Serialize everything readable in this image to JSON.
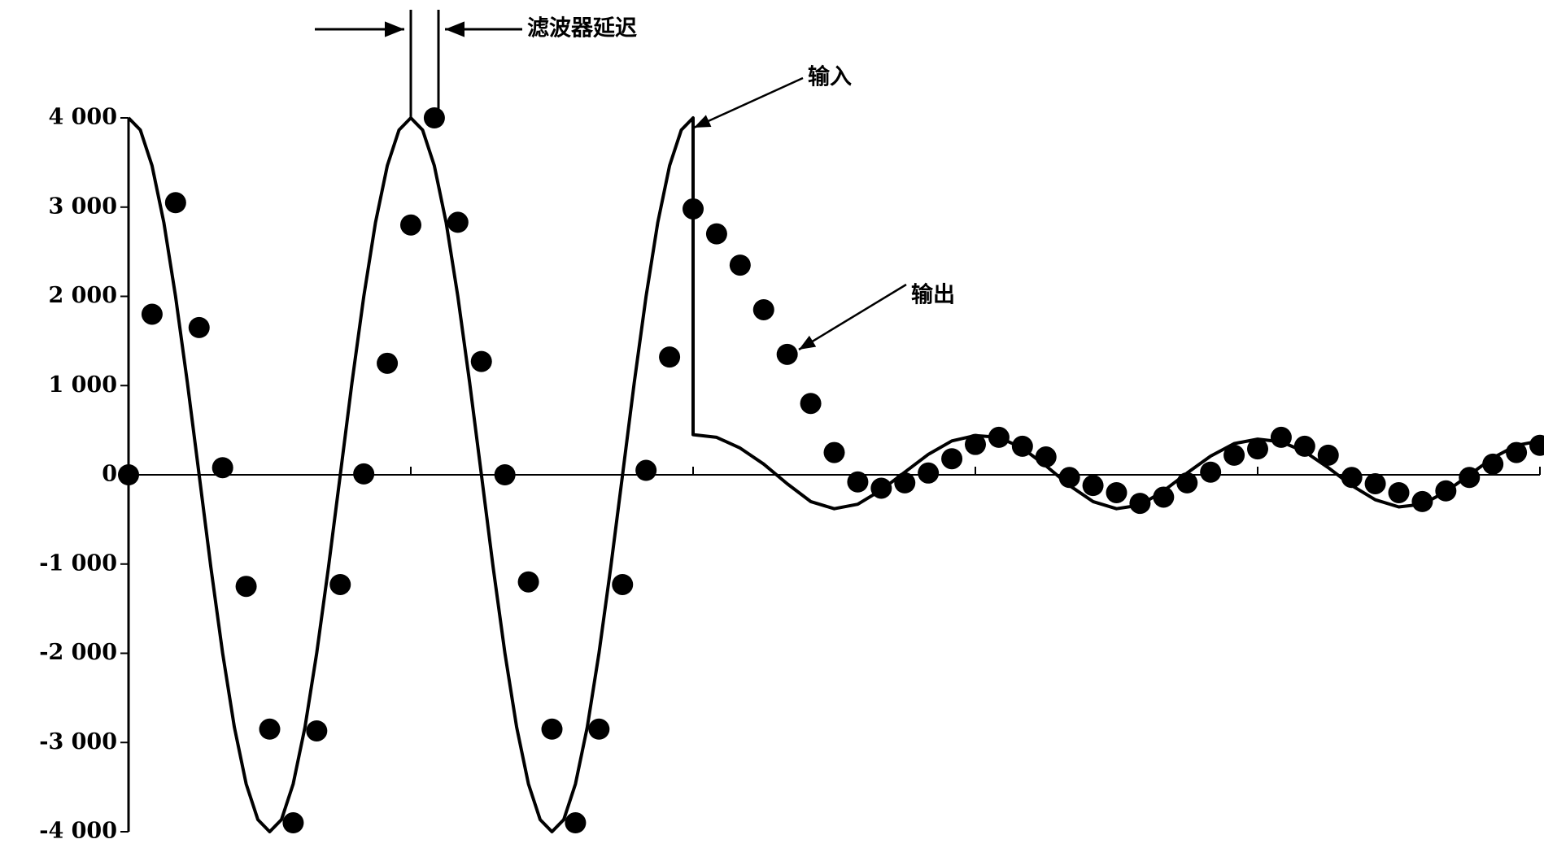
{
  "chart_data": {
    "type": "line",
    "annotations": {
      "delay": "滤波器延迟",
      "input": "输入",
      "output": "输出"
    },
    "xlim": [
      0,
      60
    ],
    "xticks": [
      0,
      12,
      24,
      36,
      48,
      60
    ],
    "ylim": [
      -4000,
      4000
    ],
    "yticks": [
      {
        "value": 4000,
        "label": "4 000"
      },
      {
        "value": 3000,
        "label": "3 000"
      },
      {
        "value": 2000,
        "label": "2 000"
      },
      {
        "value": 1000,
        "label": "1 000"
      },
      0,
      {
        "value": -1000,
        "label": "-1 000"
      },
      {
        "value": -2000,
        "label": "-2 000"
      },
      {
        "value": -3000,
        "label": "-3 000"
      },
      {
        "value": -4000,
        "label": "-4 000"
      }
    ],
    "series": [
      {
        "style": "line",
        "color": "#000000",
        "x": [
          0,
          0.5,
          1,
          1.5,
          2,
          2.5,
          3,
          3.5,
          4,
          4.5,
          5,
          5.5,
          6,
          6.5,
          7,
          7.5,
          8,
          8.5,
          9,
          9.5,
          10,
          10.5,
          11,
          11.5,
          12,
          12.5,
          13,
          13.5,
          14,
          14.5,
          15,
          15.5,
          16,
          16.5,
          17,
          17.5,
          18,
          18.5,
          19,
          19.5,
          20,
          20.5,
          21,
          21.5,
          22,
          22.5,
          23,
          23.5,
          24,
          24,
          25,
          26,
          27,
          28,
          29,
          30,
          31,
          32,
          33,
          34,
          35,
          36,
          37,
          38,
          39,
          40,
          41,
          42,
          43,
          44,
          45,
          46,
          47,
          48,
          49,
          50,
          51,
          52,
          53,
          54,
          55,
          56,
          57,
          58,
          59,
          60
        ],
        "values": [
          4000,
          3864,
          3464,
          2828,
          2000,
          1035,
          0,
          -1035,
          -2000,
          -2828,
          -3464,
          -3864,
          -4000,
          -3864,
          -3464,
          -2828,
          -2000,
          -1035,
          0,
          1035,
          2000,
          2828,
          3464,
          3864,
          4000,
          3864,
          3464,
          2828,
          2000,
          1035,
          0,
          -1035,
          -2000,
          -2828,
          -3464,
          -3864,
          -4000,
          -3864,
          -3464,
          -2828,
          -2000,
          -1035,
          0,
          1035,
          2000,
          2828,
          3464,
          3864,
          4000,
          450,
          420,
          300,
          120,
          -100,
          -300,
          -380,
          -330,
          -170,
          30,
          230,
          380,
          440,
          420,
          300,
          100,
          -120,
          -300,
          -380,
          -340,
          -180,
          20,
          210,
          350,
          400,
          370,
          260,
          80,
          -120,
          -280,
          -360,
          -330,
          -190,
          0,
          190,
          330,
          380
        ]
      },
      {
        "style": "dots",
        "color": "#000000",
        "x": [
          0,
          1,
          2,
          3,
          4,
          5,
          6,
          7,
          8,
          9,
          10,
          11,
          12,
          13,
          14,
          15,
          16,
          17,
          18,
          19,
          20,
          21,
          22,
          23,
          24,
          25,
          26,
          27,
          28,
          29,
          30,
          31,
          32,
          33,
          34,
          35,
          36,
          37,
          38,
          39,
          40,
          41,
          42,
          43,
          44,
          45,
          46,
          47,
          48,
          49,
          50,
          51,
          52,
          53,
          54,
          55,
          56,
          57,
          58,
          59,
          60
        ],
        "values": [
          0,
          1800,
          3050,
          1650,
          80,
          -1250,
          -2850,
          -3900,
          -2870,
          -1230,
          10,
          1250,
          2800,
          4000,
          2830,
          1270,
          0,
          -1200,
          -2850,
          -3900,
          -2850,
          -1230,
          50,
          1320,
          2980,
          2700,
          2350,
          1850,
          1350,
          800,
          250,
          -80,
          -150,
          -90,
          20,
          180,
          340,
          420,
          320,
          200,
          -30,
          -120,
          -200,
          -320,
          -250,
          -90,
          30,
          220,
          290,
          420,
          320,
          220,
          -30,
          -100,
          -200,
          -300,
          -180,
          -30,
          120,
          250,
          330
        ]
      }
    ]
  }
}
